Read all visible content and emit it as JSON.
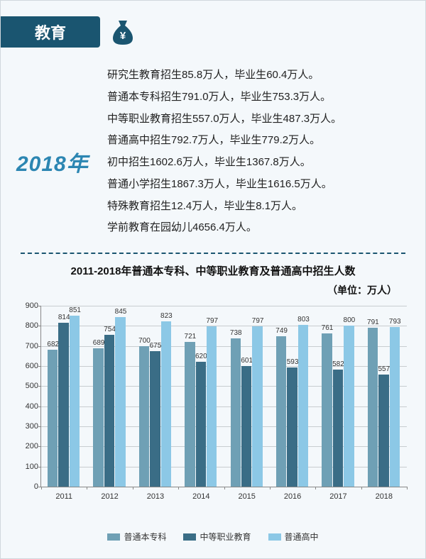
{
  "header": {
    "title": "教育"
  },
  "icon": {
    "name": "coin-bag",
    "color": "#1a5570"
  },
  "year_label": "2018年",
  "stats_lines": [
    "研究生教育招生85.8万人，毕业生60.4万人。",
    "普通本专科招生791.0万人，毕业生753.3万人。",
    "中等职业教育招生557.0万人，毕业生487.3万人。",
    "普通高中招生792.7万人，毕业生779.2万人。",
    "初中招生1602.6万人，毕业生1367.8万人。",
    "普通小学招生1867.3万人，毕业生1616.5万人。",
    "特殊教育招生12.4万人，毕业生8.1万人。",
    "学前教育在园幼儿4656.4万人。"
  ],
  "chart": {
    "type": "bar",
    "title": "2011-2018年普通本专科、中等职业教育及普通高中招生人数",
    "unit": "（单位：万人）",
    "categories": [
      "2011",
      "2012",
      "2013",
      "2014",
      "2015",
      "2016",
      "2017",
      "2018"
    ],
    "series": [
      {
        "name": "普通本专科",
        "color": "#6fa0b5",
        "values": [
          682,
          689,
          700,
          721,
          738,
          749,
          761,
          791
        ]
      },
      {
        "name": "中等职业教育",
        "color": "#3a6d86",
        "values": [
          814,
          754,
          675,
          620,
          601,
          593,
          582,
          557
        ]
      },
      {
        "name": "普通高中",
        "color": "#8cc8e6",
        "values": [
          851,
          845,
          823,
          797,
          797,
          803,
          800,
          793
        ]
      }
    ],
    "ylim": [
      0,
      900
    ],
    "ytick_step": 100,
    "bar_group_gap_ratio": 0.28,
    "background_color": "#f4f8fb",
    "grid_color": "#c8cdd0",
    "axis_color": "#888888",
    "label_fontsize": 11,
    "value_label_fontsize": 10,
    "title_fontsize": 15,
    "show_value_labels": true
  },
  "colors": {
    "header_bg": "#1a5570",
    "header_text": "#ffffff",
    "year_text": "#2c86b2",
    "body_text": "#222222",
    "page_bg": "#f4f8fb",
    "divider": "#1a5570"
  }
}
